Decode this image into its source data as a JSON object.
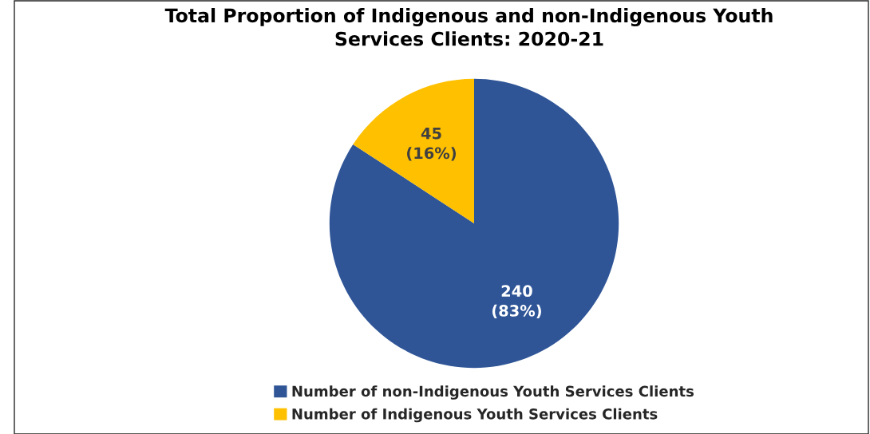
{
  "chart_data": {
    "type": "pie",
    "title": "Total Proportion of Indigenous and non-Indigenous Youth\nServices Clients: 2020-21",
    "categories": [
      "Number of non-Indigenous Youth Services Clients",
      "Number of Indigenous Youth Services Clients"
    ],
    "values": [
      240,
      45
    ],
    "colors": [
      "#2f5597",
      "#ffc000"
    ],
    "value_labels": [
      "240\n(83%)",
      "45\n(16%)"
    ],
    "legend": "bottom"
  }
}
